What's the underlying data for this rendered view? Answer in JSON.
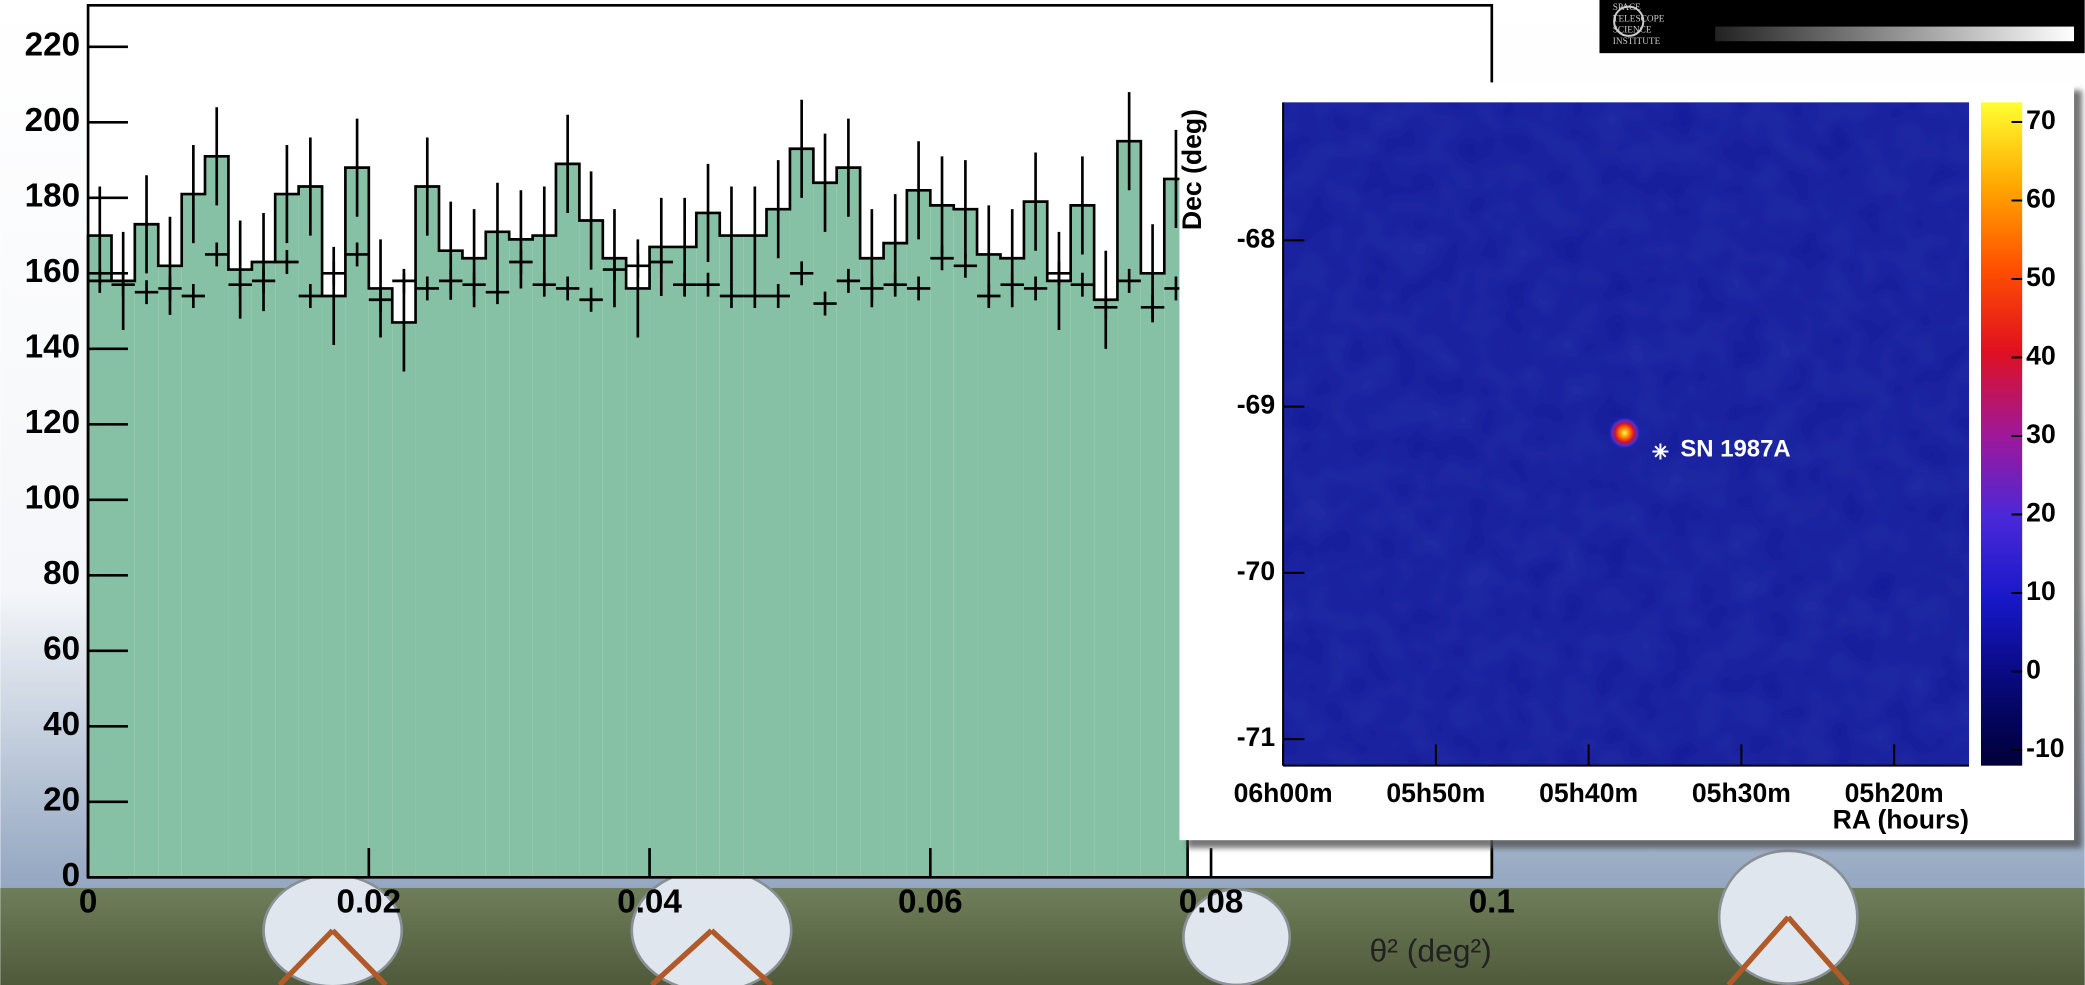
{
  "chart_data": [
    {
      "type": "histogram",
      "x_label": "θ² (deg²)",
      "xlim": [
        0,
        0.1
      ],
      "xticks": [
        0,
        0.02,
        0.04,
        0.06,
        0.08,
        0.1
      ],
      "ylim": [
        0,
        231
      ],
      "yticks": [
        0,
        20,
        40,
        60,
        80,
        100,
        120,
        140,
        160,
        180,
        200,
        220
      ],
      "color": "#86c1a5",
      "bins": [
        0,
        0.00167,
        0.00333,
        0.005,
        0.00667,
        0.00833,
        0.01,
        0.01167,
        0.01333,
        0.015,
        0.01667,
        0.01833,
        0.02,
        0.02167,
        0.02333,
        0.025,
        0.02667,
        0.02833,
        0.03,
        0.03167,
        0.03333,
        0.035,
        0.03667,
        0.03833,
        0.04,
        0.04167,
        0.04333,
        0.045,
        0.04667,
        0.04833,
        0.05,
        0.05167,
        0.05333,
        0.055,
        0.05667,
        0.05833,
        0.06,
        0.06167,
        0.06333,
        0.065,
        0.06667,
        0.06833,
        0.07,
        0.07167,
        0.07333,
        0.075,
        0.07667,
        0.07833
      ],
      "values": [
        170,
        158,
        173,
        162,
        181,
        191,
        161,
        163,
        181,
        183,
        154,
        188,
        156,
        147,
        183,
        166,
        164,
        171,
        169,
        170,
        189,
        174,
        164,
        156,
        167,
        167,
        176,
        170,
        170,
        177,
        193,
        184,
        188,
        164,
        168,
        182,
        178,
        177,
        165,
        164,
        179,
        158,
        178,
        153,
        195,
        160,
        185
      ],
      "errors": [
        13,
        13,
        13,
        13,
        13,
        13,
        13,
        13,
        13,
        13,
        13,
        13,
        13,
        13,
        13,
        13,
        13,
        13,
        13,
        13,
        13,
        13,
        13,
        13,
        13,
        13,
        13,
        13,
        13,
        13,
        13,
        13,
        13,
        13,
        13,
        13,
        13,
        13,
        13,
        13,
        13,
        13,
        13,
        13,
        13,
        13,
        13
      ],
      "background_values": [
        158,
        157,
        155,
        156,
        154,
        165,
        157,
        158,
        163,
        154,
        160,
        165,
        153,
        158,
        156,
        158,
        157,
        155,
        163,
        157,
        156,
        153,
        161,
        162,
        163,
        157,
        157,
        154,
        154,
        154,
        160,
        152,
        158,
        156,
        157,
        156,
        164,
        162,
        154,
        157,
        156,
        160,
        157,
        151,
        158,
        151,
        156
      ]
    },
    {
      "type": "heatmap",
      "x_label": "RA (hours)",
      "y_label": "Dec (deg)",
      "xlim": [
        360,
        315.1
      ],
      "xticks": [
        {
          "value": 360,
          "label": "06h00m"
        },
        {
          "value": 350,
          "label": "05h50m"
        },
        {
          "value": 340,
          "label": "05h40m"
        },
        {
          "value": 330,
          "label": "05h30m"
        },
        {
          "value": 320,
          "label": "05h20m"
        }
      ],
      "ylim": [
        -71.16,
        -67.17
      ],
      "yticks": [
        -71,
        -70,
        -69,
        -68
      ],
      "zlim": [
        -12,
        72.5
      ],
      "zticks": [
        -10,
        0,
        10,
        20,
        30,
        40,
        50,
        60,
        70
      ],
      "colormap": [
        "#000038",
        "#08087a",
        "#1818c8",
        "#4a28d8",
        "#a01898",
        "#e01020",
        "#ff5000",
        "#ffa800",
        "#ffff30"
      ],
      "map_color": "#131a9a",
      "annotation": {
        "text": "SN 1987A",
        "x": 335.3,
        "y": -69.27
      }
    }
  ],
  "logo": {
    "lines": [
      "SPACE",
      "TELESCOPE",
      "SCIENCE",
      "INSTITUTE"
    ]
  }
}
